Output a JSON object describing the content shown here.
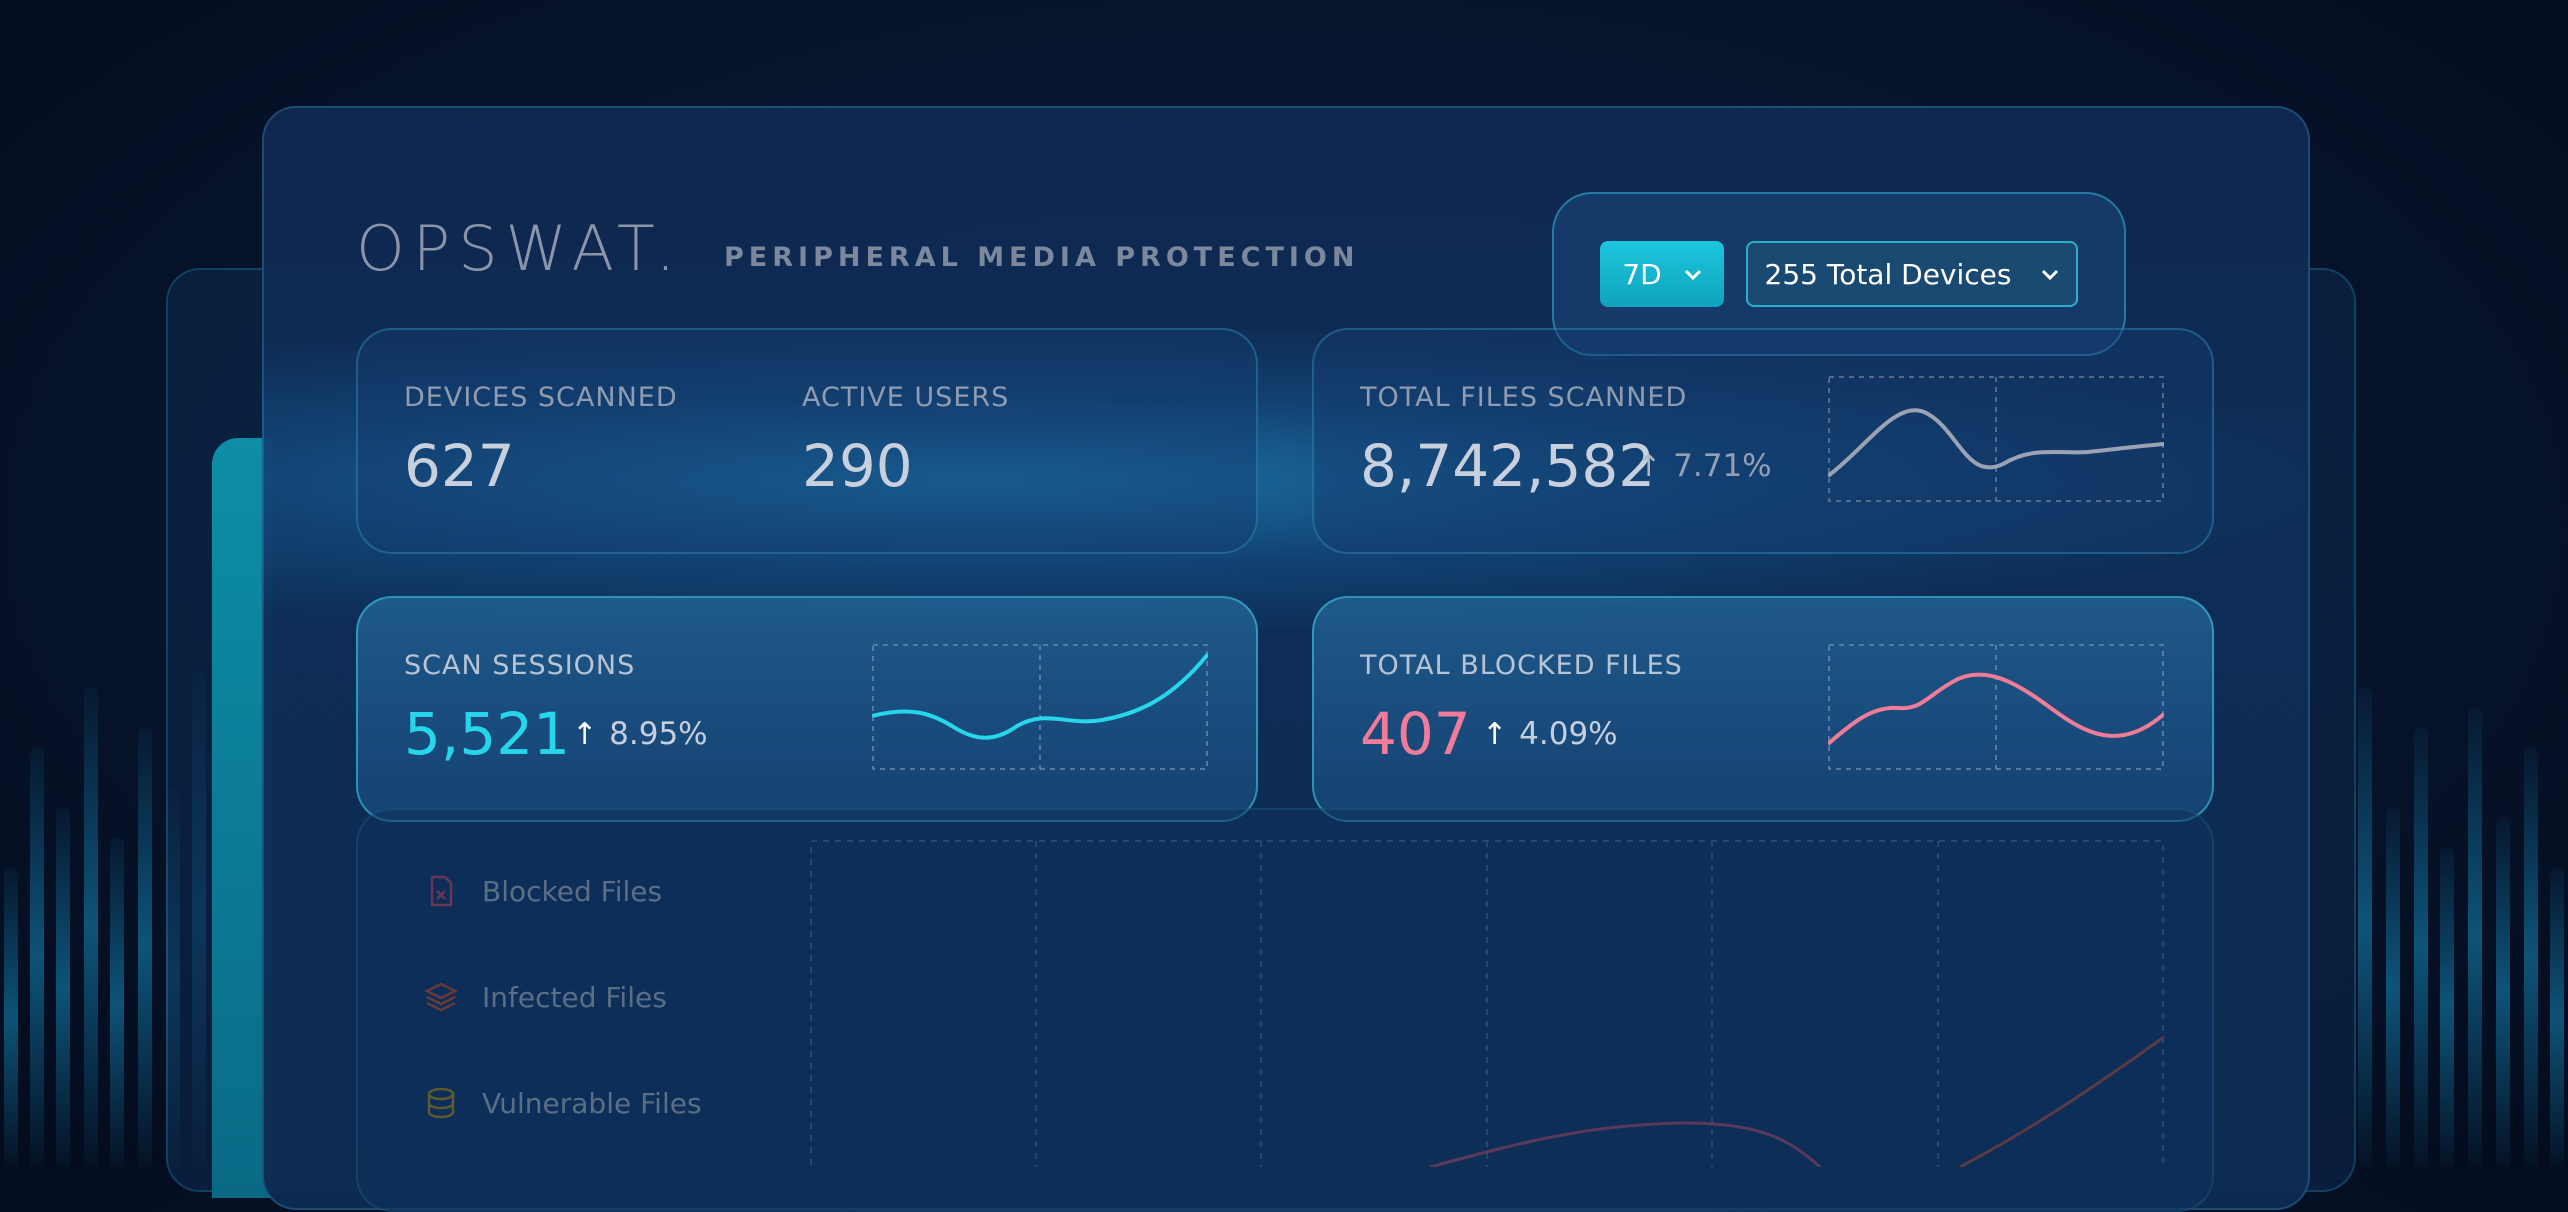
{
  "brand": {
    "logo": "OPSWAT.",
    "subtitle": "PERIPHERAL MEDIA PROTECTION"
  },
  "controls": {
    "period_label": "7D",
    "devices_label": "255 Total Devices"
  },
  "stats": {
    "devices_scanned": {
      "label": "DEVICES SCANNED",
      "value": "627"
    },
    "active_users": {
      "label": "ACTIVE USERS",
      "value": "290"
    },
    "total_files_scanned": {
      "label": "TOTAL FILES SCANNED",
      "value": "8,742,582",
      "change": "7.71%"
    },
    "scan_sessions": {
      "label": "SCAN SESSIONS",
      "value": "5,521",
      "change": "8.95%"
    },
    "total_blocked_files": {
      "label": "TOTAL BLOCKED FILES",
      "value": "407",
      "change": "4.09%"
    }
  },
  "legend": {
    "blocked": "Blocked Files",
    "infected": "Infected Files",
    "vulnerable": "Vulnerable Files"
  },
  "colors": {
    "accent_cyan": "#28d6ec",
    "accent_pink": "#f07c9a",
    "neutral_line": "#9aa3b4"
  },
  "icons": {
    "up_arrow": "arrow-up-icon",
    "dropdown": "chevron-down-icon",
    "blocked": "file-blocked-icon",
    "infected": "layers-infected-icon",
    "vulnerable": "database-vulnerable-icon"
  }
}
